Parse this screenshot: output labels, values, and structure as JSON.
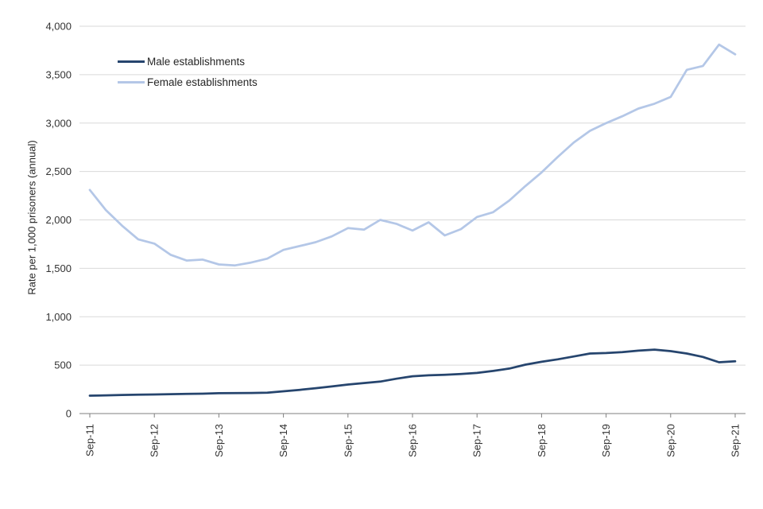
{
  "chart_data": {
    "type": "line",
    "ylabel": "Rate per 1,000 prisoners (annual)",
    "ylim": [
      0,
      4000
    ],
    "ytick_step": 500,
    "yticks": [
      "0",
      "500",
      "1,000",
      "1,500",
      "2,000",
      "2,500",
      "3,000",
      "3,500",
      "4,000"
    ],
    "grid": "horizontal",
    "legend_position": "top-left-inside",
    "x_tick_interval": 4,
    "x": [
      "Sep-11",
      "Dec-11",
      "Mar-12",
      "Jun-12",
      "Sep-12",
      "Dec-12",
      "Mar-13",
      "Jun-13",
      "Sep-13",
      "Dec-13",
      "Mar-14",
      "Jun-14",
      "Sep-14",
      "Dec-14",
      "Mar-15",
      "Jun-15",
      "Sep-15",
      "Dec-15",
      "Mar-16",
      "Jun-16",
      "Sep-16",
      "Dec-16",
      "Mar-17",
      "Jun-17",
      "Sep-17",
      "Dec-17",
      "Mar-18",
      "Jun-18",
      "Sep-18",
      "Dec-18",
      "Mar-19",
      "Jun-19",
      "Sep-19",
      "Dec-19",
      "Mar-20",
      "Jun-20",
      "Sep-20",
      "Dec-20",
      "Mar-21",
      "Jun-21",
      "Sep-21"
    ],
    "series": [
      {
        "name": "Male establishments",
        "color": "#26456e",
        "values": [
          185,
          188,
          192,
          195,
          197,
          200,
          203,
          205,
          210,
          212,
          213,
          215,
          230,
          245,
          262,
          280,
          300,
          315,
          330,
          360,
          385,
          395,
          400,
          408,
          420,
          440,
          465,
          505,
          535,
          560,
          590,
          620,
          625,
          635,
          650,
          660,
          645,
          620,
          585,
          530,
          540
        ]
      },
      {
        "name": "Female establishments",
        "color": "#b4c7e7",
        "values": [
          2310,
          2100,
          1940,
          1800,
          1755,
          1640,
          1580,
          1590,
          1540,
          1530,
          1560,
          1600,
          1690,
          1730,
          1770,
          1830,
          1915,
          1900,
          2000,
          1960,
          1890,
          1975,
          1840,
          1905,
          2030,
          2080,
          2200,
          2350,
          2490,
          2650,
          2800,
          2920,
          3000,
          3070,
          3150,
          3200,
          3270,
          3550,
          3590,
          3810,
          3710
        ]
      }
    ]
  }
}
